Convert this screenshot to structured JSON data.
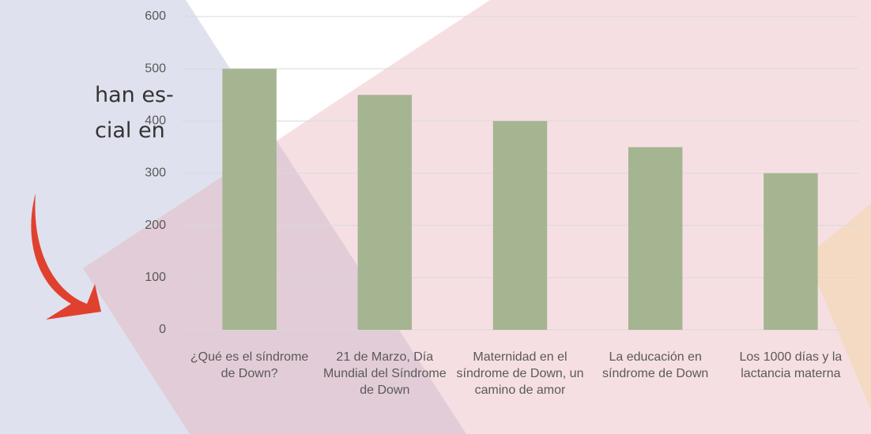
{
  "slide_text": [
    "han es-",
    "cial en"
  ],
  "chart_data": {
    "type": "bar",
    "categories": [
      "¿Qué es el síndrome de Down?",
      "21 de Marzo, Día Mundial del Síndrome de Down",
      "Maternidad en el síndrome de Down, un camino de amor",
      "La educación en síndrome de Down",
      "Los 1000 días y la lactancia materna"
    ],
    "values": [
      500,
      450,
      400,
      350,
      300
    ],
    "color": "#a5b592",
    "ylim": [
      0,
      600
    ],
    "yticks": [
      0,
      100,
      200,
      300,
      400,
      500,
      600
    ],
    "grid": true
  }
}
